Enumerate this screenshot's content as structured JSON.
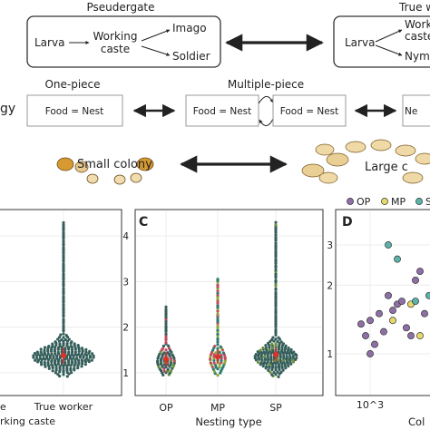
{
  "row_castes": {
    "pseudergate": {
      "title": "Pseuderg­ate",
      "larva": "Larva",
      "working_caste_line1": "Working",
      "working_caste_line2": "caste",
      "imago": "Imago",
      "soldier": "Soldier"
    },
    "true_worker": {
      "title": "True w",
      "larva": "Larva",
      "working_line1": "Worki",
      "working_line2": "caste",
      "nymph": "Nym"
    }
  },
  "row_nesting": {
    "left_label_fragment": "gy",
    "one_piece": {
      "title": "One-piece",
      "box": "Food = Nest"
    },
    "multiple_piece": {
      "title": "Multiple-piece",
      "box_left": "Food = Nest",
      "box_right": "Food = Nest"
    },
    "separate_fragment": "Ne"
  },
  "row_colony": {
    "small": "Small colony",
    "large": "Large c"
  },
  "panel_b": {
    "tick_label": "True worker",
    "partial_left_tick": "e",
    "xlabel": "rking caste"
  },
  "panel_c": {
    "letter": "C",
    "xlabel": "Nesting type",
    "categories": [
      "OP",
      "MP",
      "SP"
    ],
    "y_ticks": [
      "1",
      "2",
      "3",
      "4"
    ]
  },
  "panel_d": {
    "letter": "D",
    "legend": [
      {
        "label": "OP",
        "color": "#8e6fa6"
      },
      {
        "label": "MP",
        "color": "#e6d86a"
      },
      {
        "label": "SP",
        "color": "#5ab4a8"
      }
    ],
    "y_ticks": [
      "1",
      "2",
      "3"
    ],
    "x_tick": "10^3",
    "xlabel": "Col"
  },
  "colors": {
    "dot_dark": "#355e5a",
    "dot_mid": "#2e7b72",
    "mean_red": "#e0302a",
    "op_purple": "#8e6fa6",
    "mp_yellow": "#e6d86a",
    "sp_teal": "#5ab4a8",
    "grid": "#ececec"
  },
  "chart_data": [
    {
      "type": "scatter",
      "panel": "C",
      "xlabel": "Nesting type",
      "ylabel": "",
      "categories": [
        "OP",
        "MP",
        "SP"
      ],
      "ylim": [
        0.7,
        4.4
      ],
      "y_ticks": [
        1,
        2,
        3,
        4
      ],
      "series": [
        {
          "category": "OP",
          "min": 0.95,
          "max": 2.45,
          "center": 1.25,
          "mean": 1.3
        },
        {
          "category": "MP",
          "min": 0.95,
          "max": 3.1,
          "center": 1.3,
          "mean": 1.35
        },
        {
          "category": "SP",
          "min": 0.92,
          "max": 4.3,
          "center": 1.35,
          "mean": 1.4
        }
      ]
    },
    {
      "type": "scatter",
      "panel": "D",
      "xlabel": "Col",
      "y_ticks": [
        1,
        2,
        3
      ],
      "series": [
        {
          "name": "OP",
          "points": [
            [
              0.2,
              1.35
            ],
            [
              0.25,
              1.2
            ],
            [
              0.3,
              1.0
            ],
            [
              0.35,
              1.1
            ],
            [
              0.4,
              1.5
            ],
            [
              0.45,
              1.25
            ],
            [
              0.5,
              1.8
            ],
            [
              0.55,
              1.55
            ],
            [
              0.6,
              1.65
            ],
            [
              0.65,
              1.7
            ],
            [
              0.7,
              1.3
            ],
            [
              0.75,
              1.2
            ],
            [
              0.8,
              2.1
            ],
            [
              0.85,
              2.3
            ],
            [
              0.9,
              1.5
            ],
            [
              0.3,
              1.4
            ]
          ]
        },
        {
          "name": "MP",
          "points": [
            [
              0.55,
              1.4
            ],
            [
              0.75,
              1.65
            ],
            [
              0.85,
              1.2
            ]
          ]
        },
        {
          "name": "SP",
          "points": [
            [
              0.5,
              3.0
            ],
            [
              0.6,
              2.6
            ],
            [
              0.8,
              1.7
            ],
            [
              0.95,
              1.8
            ],
            [
              1.0,
              1.3
            ]
          ]
        }
      ]
    }
  ]
}
